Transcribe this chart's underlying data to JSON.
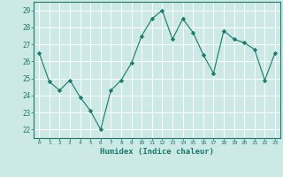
{
  "x": [
    0,
    1,
    2,
    3,
    4,
    5,
    6,
    7,
    8,
    9,
    10,
    11,
    12,
    13,
    14,
    15,
    16,
    17,
    18,
    19,
    20,
    21,
    22,
    23
  ],
  "y": [
    26.5,
    24.8,
    24.3,
    24.9,
    23.9,
    23.1,
    22.0,
    24.3,
    24.9,
    25.9,
    27.5,
    28.5,
    29.0,
    27.3,
    28.5,
    27.7,
    26.4,
    25.3,
    27.8,
    27.3,
    27.1,
    26.7,
    24.9,
    26.5
  ],
  "line_color": "#1a7a6e",
  "marker": "D",
  "marker_size": 2.2,
  "bg_color": "#cce9e5",
  "grid_color": "#ffffff",
  "tick_color": "#1a7a6e",
  "label_color": "#1a7a6e",
  "xlabel": "Humidex (Indice chaleur)",
  "ylim": [
    21.5,
    29.5
  ],
  "yticks": [
    22,
    23,
    24,
    25,
    26,
    27,
    28,
    29
  ],
  "xticks": [
    0,
    1,
    2,
    3,
    4,
    5,
    6,
    7,
    8,
    9,
    10,
    11,
    12,
    13,
    14,
    15,
    16,
    17,
    18,
    19,
    20,
    21,
    22,
    23
  ]
}
